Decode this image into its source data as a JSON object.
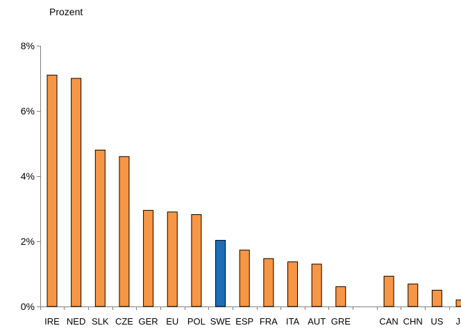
{
  "chart_data": {
    "type": "bar",
    "unit_label": "Prozent",
    "categories": [
      "IRE",
      "NED",
      "SLK",
      "CZE",
      "GER",
      "EU",
      "POL",
      "SWE",
      "ESP",
      "FRA",
      "ITA",
      "AUT",
      "GRE",
      "",
      "CAN",
      "CHN",
      "US",
      "JP"
    ],
    "values": [
      7.1,
      7.0,
      4.8,
      4.6,
      2.95,
      2.9,
      2.82,
      2.03,
      1.73,
      1.47,
      1.37,
      1.3,
      0.61,
      null,
      0.93,
      0.69,
      0.5,
      0.2
    ],
    "highlight_category": "SWE",
    "colors": {
      "default": "#F79646",
      "highlight": "#1F6DB5",
      "outline": "#000000"
    },
    "yticks": [
      "0%",
      "2%",
      "4%",
      "6%",
      "8%"
    ],
    "ytick_values": [
      0,
      2,
      4,
      6,
      8
    ],
    "ylim": [
      0,
      8
    ],
    "grid": false
  }
}
